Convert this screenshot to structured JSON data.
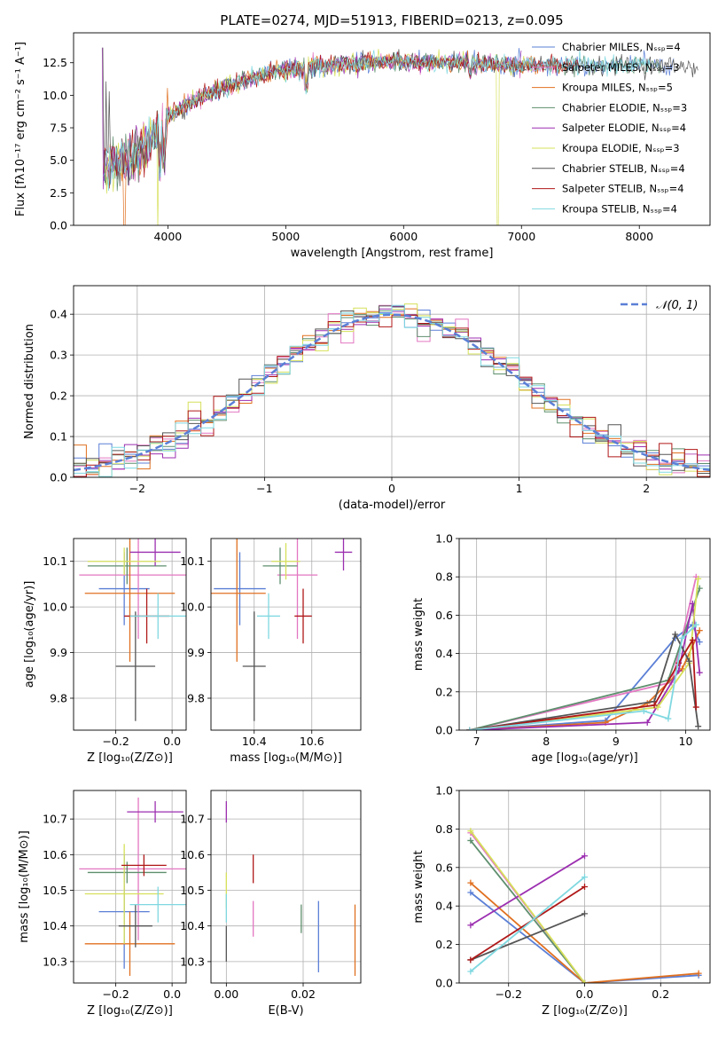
{
  "figure_title": "PLATE=0274, MJD=51913, FIBERID=0213, z=0.095",
  "colors": {
    "Chabrier MILES": "#5b7fd6",
    "Salpeter MILES": "#e377c2",
    "Kroupa MILES": "#e07020",
    "Chabrier ELODIE": "#5e8f6e",
    "Salpeter ELODIE": "#9c2fb0",
    "Kroupa ELODIE": "#d6e05a",
    "Chabrier STELIB": "#555555",
    "Salpeter STELIB": "#b01818",
    "Kroupa STELIB": "#7fd8e0",
    "normal": "#5b7fd6",
    "grid": "#b0b0b0"
  },
  "chart_data": [
    {
      "panel": "spectrum",
      "type": "line",
      "xlabel": "wavelength [Angstrom, rest frame]",
      "ylabel": "Flux [fλ10⁻¹⁷ erg cm⁻² s⁻¹ A⁻¹]",
      "xlim": [
        3200,
        8600
      ],
      "ylim": [
        0,
        14.8
      ],
      "xticks": [
        "4000",
        "5000",
        "6000",
        "7000",
        "8000"
      ],
      "yticks": [
        "0.0",
        "2.5",
        "5.0",
        "7.5",
        "10.0",
        "12.5"
      ],
      "grid": false,
      "legend_position": "right",
      "legend": [
        "Chabrier MILES, Nₛₛₚ=4",
        "Salpeter MILES, Nₛₛₚ=3",
        "Kroupa MILES, Nₛₛₚ=5",
        "Chabrier ELODIE, Nₛₛₚ=3",
        "Salpeter ELODIE, Nₛₛₚ=4",
        "Kroupa ELODIE, Nₛₛₚ=3",
        "Chabrier STELIB, Nₛₛₚ=4",
        "Salpeter STELIB, Nₛₛₚ=4",
        "Kroupa STELIB, Nₛₛₚ=4"
      ],
      "continuum": {
        "x": [
          3450,
          3600,
          3700,
          3850,
          4000,
          4100,
          4300,
          4500,
          4700,
          4900,
          5100,
          5300,
          5500,
          5700,
          5900,
          6100,
          6300,
          6500,
          6700,
          6900,
          7100,
          7300,
          7500,
          7700,
          7900,
          8100,
          8300,
          8500,
          8600
        ],
        "y": [
          4.3,
          5.0,
          5.2,
          6.5,
          8.2,
          9.0,
          9.9,
          10.6,
          11.3,
          11.8,
          12.1,
          12.2,
          12.4,
          12.5,
          12.6,
          12.5,
          12.5,
          12.5,
          12.4,
          12.3,
          12.3,
          12.3,
          12.3,
          12.3,
          12.4,
          12.3,
          12.3,
          12.2,
          12.2
        ]
      }
    },
    {
      "panel": "residuals",
      "type": "bar",
      "xlabel": "(data-model)/error",
      "ylabel": "Normed distribution",
      "xlim": [
        -2.5,
        2.5
      ],
      "ylim": [
        0,
        0.47
      ],
      "xticks": [
        "−2",
        "−1",
        "0",
        "1",
        "2"
      ],
      "yticks": [
        "0.0",
        "0.1",
        "0.2",
        "0.3",
        "0.4"
      ],
      "grid": true,
      "legend_position": "top-right",
      "legend": [
        "𝒩(0, 1)"
      ],
      "normal_pdf": {
        "mean": 0,
        "std": 1
      }
    },
    {
      "panel": "age-vs-Z",
      "type": "scatter",
      "xlabel": "Z [log₁₀(Z/Z⊙)]",
      "ylabel": "age  [log₁₀(age/yr)]",
      "xlim": [
        -0.35,
        0.05
      ],
      "ylim": [
        9.73,
        10.15
      ],
      "xticks": [
        "−0.2",
        "0.0"
      ],
      "yticks": [
        "9.8",
        "9.9",
        "10.0",
        "10.1"
      ],
      "grid": true,
      "series": [
        {
          "name": "Chabrier MILES",
          "x": -0.17,
          "xerr": 0.09,
          "y": 10.04,
          "yerr": 0.08
        },
        {
          "name": "Salpeter MILES",
          "x": -0.12,
          "xerr": 0.21,
          "y": 10.07,
          "yerr": 0.14
        },
        {
          "name": "Kroupa MILES",
          "x": -0.15,
          "xerr": 0.16,
          "y": 10.03,
          "yerr": 0.15
        },
        {
          "name": "Chabrier ELODIE",
          "x": -0.16,
          "xerr": 0.14,
          "y": 10.09,
          "yerr": 0.04
        },
        {
          "name": "Salpeter ELODIE",
          "x": -0.06,
          "xerr": 0.09,
          "y": 10.12,
          "yerr": 0.03
        },
        {
          "name": "Kroupa ELODIE",
          "x": -0.17,
          "xerr": 0.13,
          "y": 10.1,
          "yerr": 0.03
        },
        {
          "name": "Chabrier STELIB",
          "x": -0.13,
          "xerr": 0.07,
          "y": 9.87,
          "yerr": 0.12
        },
        {
          "name": "Salpeter STELIB",
          "x": -0.09,
          "xerr": 0.08,
          "y": 9.98,
          "yerr": 0.06
        },
        {
          "name": "Kroupa STELIB",
          "x": -0.05,
          "xerr": 0.1,
          "y": 9.98,
          "yerr": 0.05
        }
      ]
    },
    {
      "panel": "age-vs-mass",
      "type": "scatter",
      "xlabel": "mass [log₁₀(M/M⊙)]",
      "ylabel": "",
      "xlim": [
        10.25,
        10.77
      ],
      "ylim": [
        9.73,
        10.15
      ],
      "xticks": [
        "10.4",
        "10.6"
      ],
      "yticks": [
        "9.8",
        "9.9",
        "10.0",
        "10.1"
      ],
      "grid": true,
      "series": [
        {
          "name": "Chabrier MILES",
          "x": 10.35,
          "xerr": 0.09,
          "y": 10.04,
          "yerr": 0.08
        },
        {
          "name": "Salpeter MILES",
          "x": 10.55,
          "xerr": 0.07,
          "y": 10.07,
          "yerr": 0.14
        },
        {
          "name": "Kroupa MILES",
          "x": 10.34,
          "xerr": 0.1,
          "y": 10.03,
          "yerr": 0.15
        },
        {
          "name": "Chabrier ELODIE",
          "x": 10.49,
          "xerr": 0.06,
          "y": 10.09,
          "yerr": 0.04
        },
        {
          "name": "Salpeter ELODIE",
          "x": 10.71,
          "xerr": 0.03,
          "y": 10.12,
          "yerr": 0.04
        },
        {
          "name": "Kroupa ELODIE",
          "x": 10.51,
          "xerr": 0.05,
          "y": 10.1,
          "yerr": 0.04
        },
        {
          "name": "Chabrier STELIB",
          "x": 10.4,
          "xerr": 0.04,
          "y": 9.87,
          "yerr": 0.12
        },
        {
          "name": "Salpeter STELIB",
          "x": 10.57,
          "xerr": 0.03,
          "y": 9.98,
          "yerr": 0.06
        },
        {
          "name": "Kroupa STELIB",
          "x": 10.45,
          "xerr": 0.04,
          "y": 9.98,
          "yerr": 0.05
        }
      ]
    },
    {
      "panel": "weight-vs-age",
      "type": "line",
      "xlabel": "age  [log₁₀(age/yr)]",
      "ylabel": "mass weight",
      "xlim": [
        6.75,
        10.35
      ],
      "ylim": [
        0,
        1
      ],
      "xticks": [
        "7",
        "8",
        "9",
        "10"
      ],
      "yticks": [
        "0.0",
        "0.2",
        "0.4",
        "0.6",
        "0.8",
        "1.0"
      ],
      "grid": true,
      "series": [
        {
          "name": "Chabrier MILES",
          "x": [
            6.9,
            8.85,
            9.85,
            10.1,
            10.2
          ],
          "y": [
            0.0,
            0.05,
            0.48,
            0.55,
            0.46
          ]
        },
        {
          "name": "Salpeter MILES",
          "x": [
            6.9,
            9.8,
            10.15
          ],
          "y": [
            0.0,
            0.25,
            0.8
          ]
        },
        {
          "name": "Kroupa MILES",
          "x": [
            6.9,
            8.85,
            9.45,
            9.95,
            10.2
          ],
          "y": [
            0.0,
            0.04,
            0.14,
            0.32,
            0.52
          ]
        },
        {
          "name": "Chabrier ELODIE",
          "x": [
            6.9,
            9.75,
            10.2
          ],
          "y": [
            0.0,
            0.26,
            0.74
          ]
        },
        {
          "name": "Salpeter ELODIE",
          "x": [
            6.9,
            9.45,
            9.9,
            10.1,
            10.2
          ],
          "y": [
            0.0,
            0.04,
            0.31,
            0.66,
            0.3
          ]
        },
        {
          "name": "Kroupa ELODIE",
          "x": [
            6.9,
            9.6,
            10.05,
            10.18
          ],
          "y": [
            0.0,
            0.12,
            0.35,
            0.79
          ]
        },
        {
          "name": "Chabrier STELIB",
          "x": [
            6.9,
            9.55,
            9.85,
            10.05,
            10.18
          ],
          "y": [
            0.0,
            0.15,
            0.5,
            0.36,
            0.02
          ]
        },
        {
          "name": "Salpeter STELIB",
          "x": [
            6.9,
            9.55,
            9.9,
            10.1,
            10.15
          ],
          "y": [
            0.0,
            0.13,
            0.35,
            0.47,
            0.12
          ]
        },
        {
          "name": "Kroupa STELIB",
          "x": [
            6.9,
            9.4,
            9.75,
            9.95,
            10.15
          ],
          "y": [
            0.0,
            0.1,
            0.06,
            0.48,
            0.55
          ]
        }
      ]
    },
    {
      "panel": "mass-vs-Z",
      "type": "scatter",
      "xlabel": "Z [log₁₀(Z/Z⊙)]",
      "ylabel": "mass [log₁₀(M/M⊙)]",
      "xlim": [
        -0.35,
        0.05
      ],
      "ylim": [
        10.24,
        10.78
      ],
      "xticks": [
        "−0.2",
        "0.0"
      ],
      "yticks": [
        "10.3",
        "10.4",
        "10.5",
        "10.6",
        "10.7"
      ],
      "grid": true,
      "series": [
        {
          "name": "Chabrier MILES",
          "x": -0.17,
          "xerr": 0.09,
          "y": 10.44,
          "yerr": 0.16
        },
        {
          "name": "Salpeter MILES",
          "x": -0.12,
          "xerr": 0.21,
          "y": 10.56,
          "yerr": 0.2
        },
        {
          "name": "Kroupa MILES",
          "x": -0.15,
          "xerr": 0.16,
          "y": 10.35,
          "yerr": 0.09
        },
        {
          "name": "Chabrier ELODIE",
          "x": -0.16,
          "xerr": 0.14,
          "y": 10.55,
          "yerr": 0.03
        },
        {
          "name": "Salpeter ELODIE",
          "x": -0.06,
          "xerr": 0.1,
          "y": 10.72,
          "yerr": 0.03
        },
        {
          "name": "Kroupa ELODIE",
          "x": -0.17,
          "xerr": 0.14,
          "y": 10.49,
          "yerr": 0.14
        },
        {
          "name": "Chabrier STELIB",
          "x": -0.13,
          "xerr": 0.06,
          "y": 10.4,
          "yerr": 0.06
        },
        {
          "name": "Salpeter STELIB",
          "x": -0.1,
          "xerr": 0.08,
          "y": 10.57,
          "yerr": 0.03
        },
        {
          "name": "Kroupa STELIB",
          "x": -0.05,
          "xerr": 0.1,
          "y": 10.46,
          "yerr": 0.05
        }
      ]
    },
    {
      "panel": "mass-vs-EBV",
      "type": "scatter",
      "xlabel": "E(B-V)",
      "ylabel": "",
      "xlim": [
        -0.004,
        0.035
      ],
      "ylim": [
        10.24,
        10.78
      ],
      "xticks": [
        "0.00",
        "0.02"
      ],
      "yticks": [
        "10.3",
        "10.4",
        "10.5",
        "10.6",
        "10.7"
      ],
      "grid": true,
      "series": [
        {
          "name": "Chabrier MILES",
          "x": 0.024,
          "y": 10.37,
          "yerr": 0.1
        },
        {
          "name": "Salpeter MILES",
          "x": 0.007,
          "y": 10.42,
          "yerr": 0.05
        },
        {
          "name": "Kroupa MILES",
          "x": 0.0335,
          "y": 10.36,
          "yerr": 0.1
        },
        {
          "name": "Chabrier ELODIE",
          "x": 0.0195,
          "y": 10.42,
          "yerr": 0.04
        },
        {
          "name": "Salpeter ELODIE",
          "x": 0.0,
          "y": 10.72,
          "yerr": 0.03
        },
        {
          "name": "Kroupa ELODIE",
          "x": 0.0,
          "y": 10.5,
          "yerr": 0.05
        },
        {
          "name": "Chabrier STELIB",
          "x": 0.0,
          "y": 10.35,
          "yerr": 0.05
        },
        {
          "name": "Salpeter STELIB",
          "x": 0.007,
          "y": 10.56,
          "yerr": 0.04
        },
        {
          "name": "Kroupa STELIB",
          "x": 0.0,
          "y": 10.45,
          "yerr": 0.04
        }
      ]
    },
    {
      "panel": "weight-vs-Z",
      "type": "line",
      "xlabel": "Z [log₁₀(Z/Z⊙)]",
      "ylabel": "mass weight",
      "xlim": [
        -0.33,
        0.33
      ],
      "ylim": [
        0,
        1
      ],
      "xticks": [
        "−0.2",
        "0.0",
        "0.2"
      ],
      "yticks": [
        "0.0",
        "0.2",
        "0.4",
        "0.6",
        "0.8",
        "1.0"
      ],
      "grid": true,
      "series": [
        {
          "name": "Chabrier MILES",
          "x": [
            -0.3,
            0.0,
            0.3
          ],
          "y": [
            0.47,
            0.0,
            0.04
          ]
        },
        {
          "name": "Salpeter MILES",
          "x": [
            -0.3,
            0.0
          ],
          "y": [
            0.78,
            0.0
          ]
        },
        {
          "name": "Kroupa MILES",
          "x": [
            -0.3,
            0.0,
            0.3
          ],
          "y": [
            0.52,
            0.0,
            0.05
          ]
        },
        {
          "name": "Chabrier ELODIE",
          "x": [
            -0.3,
            0.0
          ],
          "y": [
            0.74,
            0.0
          ]
        },
        {
          "name": "Salpeter ELODIE",
          "x": [
            -0.3,
            0.0
          ],
          "y": [
            0.3,
            0.66
          ]
        },
        {
          "name": "Kroupa ELODIE",
          "x": [
            -0.3,
            0.0
          ],
          "y": [
            0.79,
            0.0
          ]
        },
        {
          "name": "Chabrier STELIB",
          "x": [
            -0.3,
            0.0
          ],
          "y": [
            0.12,
            0.36
          ]
        },
        {
          "name": "Salpeter STELIB",
          "x": [
            -0.3,
            0.0
          ],
          "y": [
            0.12,
            0.5
          ]
        },
        {
          "name": "Kroupa STELIB",
          "x": [
            -0.3,
            0.0
          ],
          "y": [
            0.06,
            0.55
          ]
        }
      ]
    }
  ]
}
